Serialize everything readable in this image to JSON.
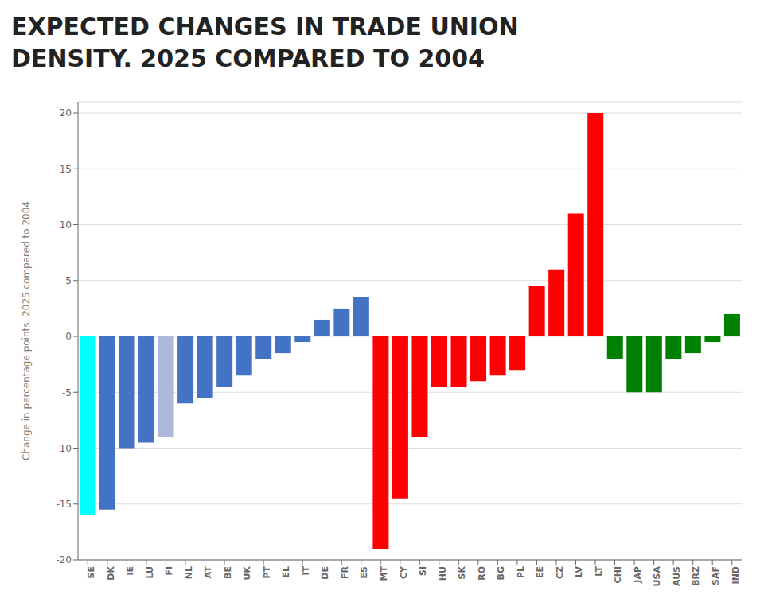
{
  "chart_data": {
    "type": "bar",
    "title": "EXPECTED CHANGES IN TRADE UNION\nDENSITY. 2025 COMPARED TO 2004",
    "categories": [
      "SE",
      "DK",
      "IE",
      "LU",
      "FI",
      "NL",
      "AT",
      "BE",
      "UK",
      "PT",
      "EL",
      "IT",
      "DE",
      "FR",
      "ES",
      "MT",
      "CY",
      "SI",
      "HU",
      "SK",
      "RO",
      "BG",
      "PL",
      "EE",
      "CZ",
      "LV",
      "LT",
      "CHI",
      "JAP",
      "USA",
      "AUS",
      "BRZ",
      "SAF",
      "IND"
    ],
    "values": [
      -16.0,
      -15.5,
      -10.0,
      -9.5,
      -9.0,
      -6.0,
      -5.5,
      -4.5,
      -3.5,
      -2.0,
      -1.5,
      -0.5,
      1.5,
      2.5,
      3.5,
      -19.0,
      -14.5,
      -9.0,
      -4.5,
      -4.5,
      -4.0,
      -3.5,
      -3.0,
      4.5,
      6.0,
      11.0,
      20.0,
      -2.0,
      -5.0,
      -5.0,
      -2.0,
      -1.5,
      -0.5,
      2.0
    ],
    "colors": [
      "#00FFFF",
      "#4472C4",
      "#4472C4",
      "#4472C4",
      "#ADB9DA",
      "#4472C4",
      "#4472C4",
      "#4472C4",
      "#4472C4",
      "#4472C4",
      "#4472C4",
      "#4472C4",
      "#4472C4",
      "#4472C4",
      "#4472C4",
      "#FF0000",
      "#FF0000",
      "#FF0000",
      "#FF0000",
      "#FF0000",
      "#FF0000",
      "#FF0000",
      "#FF0000",
      "#FF0000",
      "#FF0000",
      "#FF0000",
      "#FF0000",
      "#008000",
      "#008000",
      "#008000",
      "#008000",
      "#008000",
      "#008000",
      "#008000"
    ],
    "ylabel": "Change in percentage points, 2025 compared to 2004",
    "ylim": [
      -20,
      21
    ],
    "yticks": [
      -20,
      -15,
      -10,
      -5,
      0,
      5,
      10,
      15,
      20
    ],
    "grid": true
  }
}
